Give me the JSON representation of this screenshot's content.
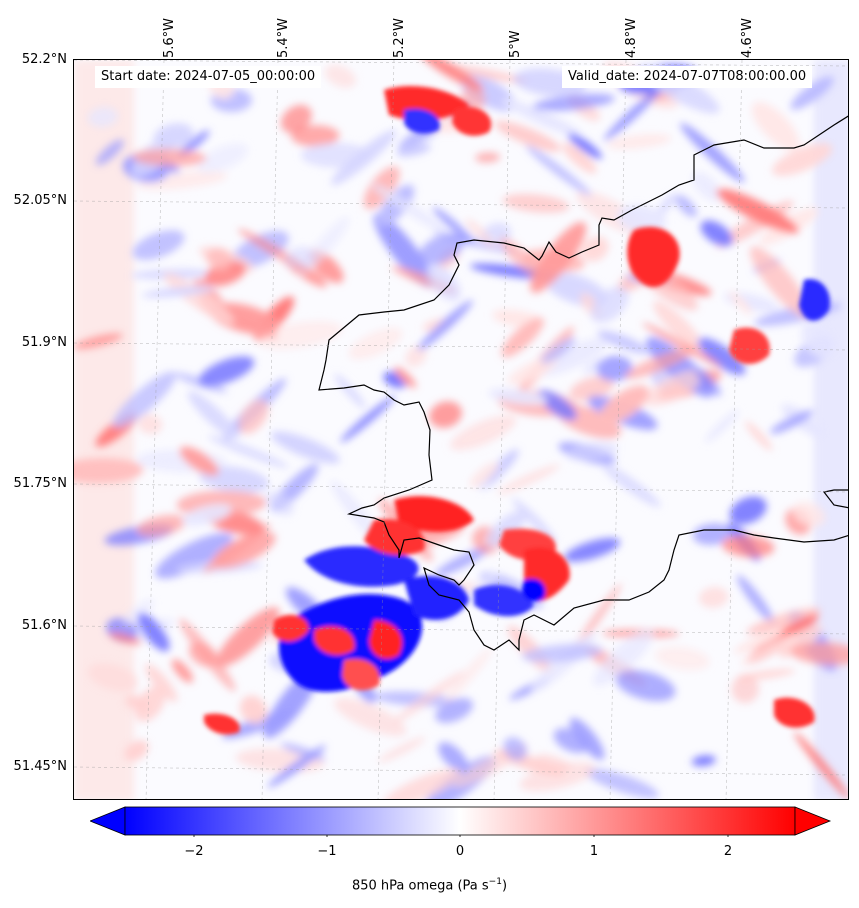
{
  "map": {
    "start_date": "Start date: 2024-07-05_00:00:00",
    "valid_date": "Valid_date: 2024-07-07T08:00:00.00",
    "lon_ticks": [
      "5.6°W",
      "5.4°W",
      "5.2°W",
      "5°W",
      "4.8°W",
      "4.6°W"
    ],
    "lat_ticks": [
      "52.2°N",
      "52.05°N",
      "51.9°N",
      "51.75°N",
      "51.6°N",
      "51.45°N"
    ],
    "gridlines": "dashed",
    "coastline_color": "#000000"
  },
  "colorbar": {
    "ticks": [
      "−2",
      "−1",
      "0",
      "1",
      "2"
    ],
    "tick_values": [
      -2,
      -1,
      0,
      1,
      2
    ],
    "range": [
      -2.5,
      2.5
    ],
    "extend": "both",
    "colormap": "bwr",
    "color_min": "#0000ff",
    "color_mid": "#ffffff",
    "color_max": "#ff0000",
    "label_main": "850 hPa omega (Pa s",
    "label_exp": "−1",
    "label_end": ")"
  }
}
